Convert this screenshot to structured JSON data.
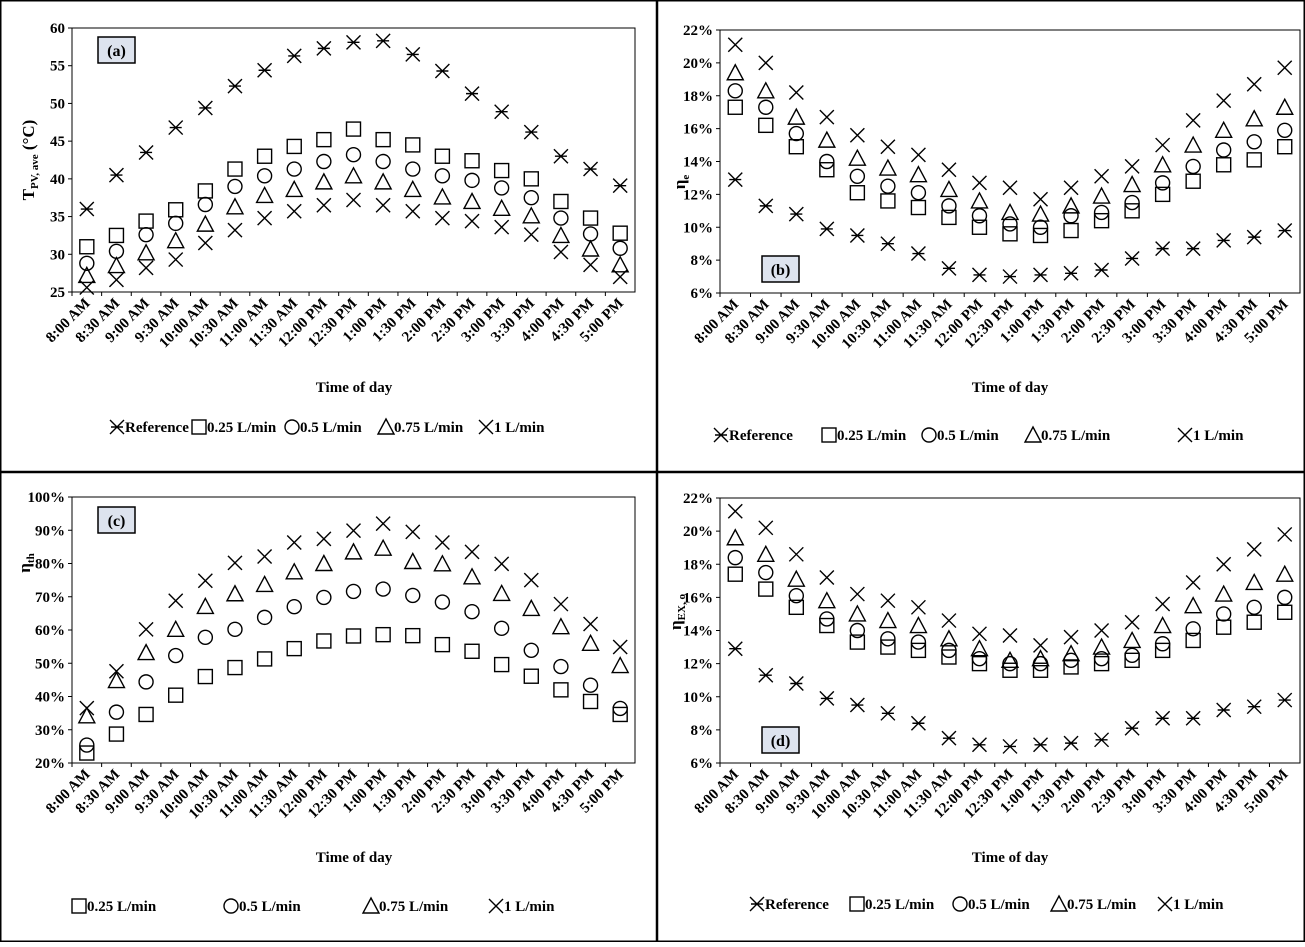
{
  "chart_data": [
    {
      "type": "scatter",
      "panel_label": "(a)",
      "xlabel": "Time of day",
      "ylabel": "T_PV,ave (°C)",
      "ylabel_main": "T",
      "ylabel_sub": "PV, ave",
      "ylabel_tail": " (°C)",
      "ylim": [
        25,
        60
      ],
      "yticks": [
        "25",
        "30",
        "35",
        "40",
        "45",
        "50",
        "55",
        "60"
      ],
      "categories": [
        "8:00 AM",
        "8:30 AM",
        "9:00 AM",
        "9:30 AM",
        "10:00 AM",
        "10:30 AM",
        "11:00 AM",
        "11:30 AM",
        "12:00 PM",
        "12:30 PM",
        "1:00 PM",
        "1:30 PM",
        "2:00 PM",
        "2:30 PM",
        "3:00 PM",
        "3:30 PM",
        "4:00 PM",
        "4:30 PM",
        "5:00 PM"
      ],
      "legend_placement": "bottom",
      "legend": [
        "Reference",
        "0.25 L/min",
        "0.5 L/min",
        "0.75 L/min",
        "1 L/min"
      ],
      "series": [
        {
          "name": "Reference",
          "marker": "asterisk",
          "values": [
            36,
            40.5,
            43.5,
            46.8,
            49.4,
            52.3,
            54.4,
            56.3,
            57.3,
            58.1,
            58.3,
            56.5,
            54.3,
            51.3,
            48.9,
            46.2,
            43,
            41.3,
            39.1
          ]
        },
        {
          "name": "0.25 L/min",
          "marker": "square",
          "values": [
            31,
            32.5,
            34.4,
            35.9,
            38.4,
            41.3,
            43,
            44.3,
            45.2,
            46.6,
            45.2,
            44.5,
            43,
            42.4,
            41.1,
            40,
            37,
            34.8,
            32.8
          ]
        },
        {
          "name": "0.5 L/min",
          "marker": "circle",
          "values": [
            28.8,
            30.4,
            32.6,
            34.1,
            36.6,
            39,
            40.4,
            41.3,
            42.3,
            43.2,
            42.3,
            41.3,
            40.4,
            39.8,
            38.8,
            37.5,
            34.8,
            32.7,
            30.8
          ]
        },
        {
          "name": "0.75 L/min",
          "marker": "triangle",
          "values": [
            27.2,
            28.5,
            30.2,
            31.8,
            34,
            36.3,
            37.8,
            38.6,
            39.6,
            40.4,
            39.6,
            38.6,
            37.6,
            37,
            36.1,
            35.1,
            32.5,
            30.7,
            28.6
          ]
        },
        {
          "name": "1 L/min",
          "marker": "x",
          "values": [
            25.6,
            26.6,
            28.2,
            29.3,
            31.5,
            33.2,
            34.8,
            35.7,
            36.5,
            37.2,
            36.5,
            35.7,
            34.8,
            34.4,
            33.6,
            32.6,
            30.3,
            28.6,
            27
          ]
        }
      ]
    },
    {
      "type": "scatter",
      "panel_label": "(b)",
      "xlabel": "Time of day",
      "ylabel": "η_e",
      "ylabel_main": "η",
      "ylabel_sub": "e",
      "ylabel_tail": "",
      "ylim": [
        6,
        22
      ],
      "yticks": [
        "6%",
        "8%",
        "10%",
        "12%",
        "14%",
        "16%",
        "18%",
        "20%",
        "22%"
      ],
      "categories": [
        "8:00 AM",
        "8:30 AM",
        "9:00 AM",
        "9:30 AM",
        "10:00 AM",
        "10:30 AM",
        "11:00 AM",
        "11:30 AM",
        "12:00 PM",
        "12:30 PM",
        "1:00 PM",
        "1:30 PM",
        "2:00 PM",
        "2:30 PM",
        "3:00 PM",
        "3:30 PM",
        "4:00 PM",
        "4:30 PM",
        "5:00 PM"
      ],
      "legend_placement": "bottom",
      "legend": [
        "Reference",
        "0.25 L/min",
        "0.5 L/min",
        "0.75 L/min",
        "1 L/min"
      ],
      "series": [
        {
          "name": "Reference",
          "marker": "asterisk",
          "values": [
            12.9,
            11.3,
            10.8,
            9.9,
            9.5,
            9,
            8.4,
            7.5,
            7.1,
            7,
            7.1,
            7.2,
            7.4,
            8.1,
            8.7,
            8.7,
            9.2,
            9.4,
            9.8
          ]
        },
        {
          "name": "0.25 L/min",
          "marker": "square",
          "values": [
            17.3,
            16.2,
            14.9,
            13.5,
            12.1,
            11.6,
            11.2,
            10.6,
            10,
            9.6,
            9.5,
            9.8,
            10.4,
            11,
            12,
            12.8,
            13.8,
            14.1,
            14.9
          ]
        },
        {
          "name": "0.5 L/min",
          "marker": "circle",
          "values": [
            18.3,
            17.3,
            15.7,
            14,
            13.1,
            12.5,
            12.1,
            11.3,
            10.7,
            10.2,
            10,
            10.7,
            10.9,
            11.5,
            12.7,
            13.7,
            14.7,
            15.2,
            15.9
          ]
        },
        {
          "name": "0.75 L/min",
          "marker": "triangle",
          "values": [
            19.4,
            18.3,
            16.7,
            15.3,
            14.2,
            13.6,
            13.2,
            12.3,
            11.6,
            10.9,
            10.8,
            11.3,
            11.9,
            12.6,
            13.8,
            15,
            15.9,
            16.6,
            17.3
          ]
        },
        {
          "name": "1 L/min",
          "marker": "x",
          "values": [
            21.1,
            20,
            18.2,
            16.7,
            15.6,
            14.9,
            14.4,
            13.5,
            12.7,
            12.4,
            11.7,
            12.4,
            13.1,
            13.7,
            15,
            16.5,
            17.7,
            18.7,
            19.7
          ]
        }
      ]
    },
    {
      "type": "scatter",
      "panel_label": "(c)",
      "xlabel": "Time of day",
      "ylabel": "η_th",
      "ylabel_main": "η",
      "ylabel_sub": "th",
      "ylabel_tail": "",
      "ylim": [
        20,
        100
      ],
      "yticks": [
        "20%",
        "30%",
        "40%",
        "50%",
        "60%",
        "70%",
        "80%",
        "90%",
        "100%"
      ],
      "categories": [
        "8:00 AM",
        "8:30 AM",
        "9:00 AM",
        "9:30 AM",
        "10:00 AM",
        "10:30 AM",
        "11:00 AM",
        "11:30 AM",
        "12:00 PM",
        "12:30 PM",
        "1:00 PM",
        "1:30 PM",
        "2:00 PM",
        "2:30 PM",
        "3:00 PM",
        "3:30 PM",
        "4:00 PM",
        "4:30 PM",
        "5:00 PM"
      ],
      "legend_placement": "bottom",
      "legend": [
        "0.25 L/min",
        "0.5 L/min",
        "0.75 L/min",
        "1 L/min"
      ],
      "series": [
        {
          "name": "0.25 L/min",
          "marker": "square",
          "values": [
            23,
            28.7,
            34.6,
            40.4,
            46,
            48.7,
            51.3,
            54.4,
            56.7,
            58.2,
            58.6,
            58.3,
            55.6,
            53.6,
            49.6,
            46.1,
            42,
            38.5,
            34.6
          ]
        },
        {
          "name": "0.5 L/min",
          "marker": "circle",
          "values": [
            25.4,
            35.3,
            44.4,
            52.3,
            57.8,
            60.2,
            63.8,
            67,
            69.8,
            71.6,
            72.3,
            70.4,
            68.4,
            65.5,
            60.5,
            53.9,
            49,
            43.4,
            36.4
          ]
        },
        {
          "name": "0.75 L/min",
          "marker": "triangle",
          "values": [
            34.2,
            44.8,
            53.2,
            60.2,
            67.1,
            70.9,
            73.7,
            77.5,
            80,
            83.5,
            84.6,
            80.6,
            79.9,
            76,
            71,
            66.5,
            61,
            56,
            49.3
          ]
        },
        {
          "name": "1 L/min",
          "marker": "x",
          "values": [
            36.5,
            47.6,
            60.2,
            68.8,
            74.8,
            80.2,
            82.1,
            86.3,
            87.4,
            89.9,
            92,
            89.5,
            86.3,
            83.5,
            79.9,
            75,
            67.8,
            61.8,
            54.9
          ]
        }
      ]
    },
    {
      "type": "scatter",
      "panel_label": "(d)",
      "xlabel": "Time of day",
      "ylabel": "η_EX,o",
      "ylabel_main": "η",
      "ylabel_sub": "EX, o",
      "ylabel_tail": "",
      "ylim": [
        6,
        22
      ],
      "yticks": [
        "6%",
        "8%",
        "10%",
        "12%",
        "14%",
        "16%",
        "18%",
        "20%",
        "22%"
      ],
      "categories": [
        "8:00 AM",
        "8:30 AM",
        "9:00 AM",
        "9:30 AM",
        "10:00 AM",
        "10:30 AM",
        "11:00 AM",
        "11:30 AM",
        "12:00 PM",
        "12:30 PM",
        "1:00 PM",
        "1:30 PM",
        "2:00 PM",
        "2:30 PM",
        "3:00 PM",
        "3:30 PM",
        "4:00 PM",
        "4:30 PM",
        "5:00 PM"
      ],
      "legend_placement": "bottom",
      "legend": [
        "Reference",
        "0.25 L/min",
        "0.5 L/min",
        "0.75 L/min",
        "1 L/min"
      ],
      "series": [
        {
          "name": "Reference",
          "marker": "asterisk",
          "values": [
            12.9,
            11.3,
            10.8,
            9.9,
            9.5,
            9,
            8.4,
            7.5,
            7.1,
            7,
            7.1,
            7.2,
            7.4,
            8.1,
            8.7,
            8.7,
            9.2,
            9.4,
            9.8
          ]
        },
        {
          "name": "0.25 L/min",
          "marker": "square",
          "values": [
            17.4,
            16.5,
            15.4,
            14.3,
            13.3,
            13,
            12.8,
            12.4,
            12,
            11.6,
            11.6,
            11.8,
            12,
            12.2,
            12.8,
            13.4,
            14.2,
            14.5,
            15.1
          ]
        },
        {
          "name": "0.5 L/min",
          "marker": "circle",
          "values": [
            18.4,
            17.5,
            16.1,
            14.7,
            14,
            13.5,
            13.3,
            12.8,
            12.3,
            12,
            12,
            12.2,
            12.3,
            12.5,
            13.2,
            14.1,
            15,
            15.4,
            16
          ]
        },
        {
          "name": "0.75 L/min",
          "marker": "triangle",
          "values": [
            19.6,
            18.6,
            17.1,
            15.8,
            15,
            14.6,
            14.3,
            13.5,
            12.9,
            12.2,
            12.3,
            12.6,
            13,
            13.4,
            14.3,
            15.5,
            16.2,
            16.9,
            17.4
          ]
        },
        {
          "name": "1 L/min",
          "marker": "x",
          "values": [
            21.2,
            20.2,
            18.6,
            17.2,
            16.2,
            15.8,
            15.4,
            14.6,
            13.8,
            13.7,
            13.1,
            13.6,
            14,
            14.5,
            15.6,
            16.9,
            18,
            18.9,
            19.8
          ]
        }
      ]
    }
  ]
}
